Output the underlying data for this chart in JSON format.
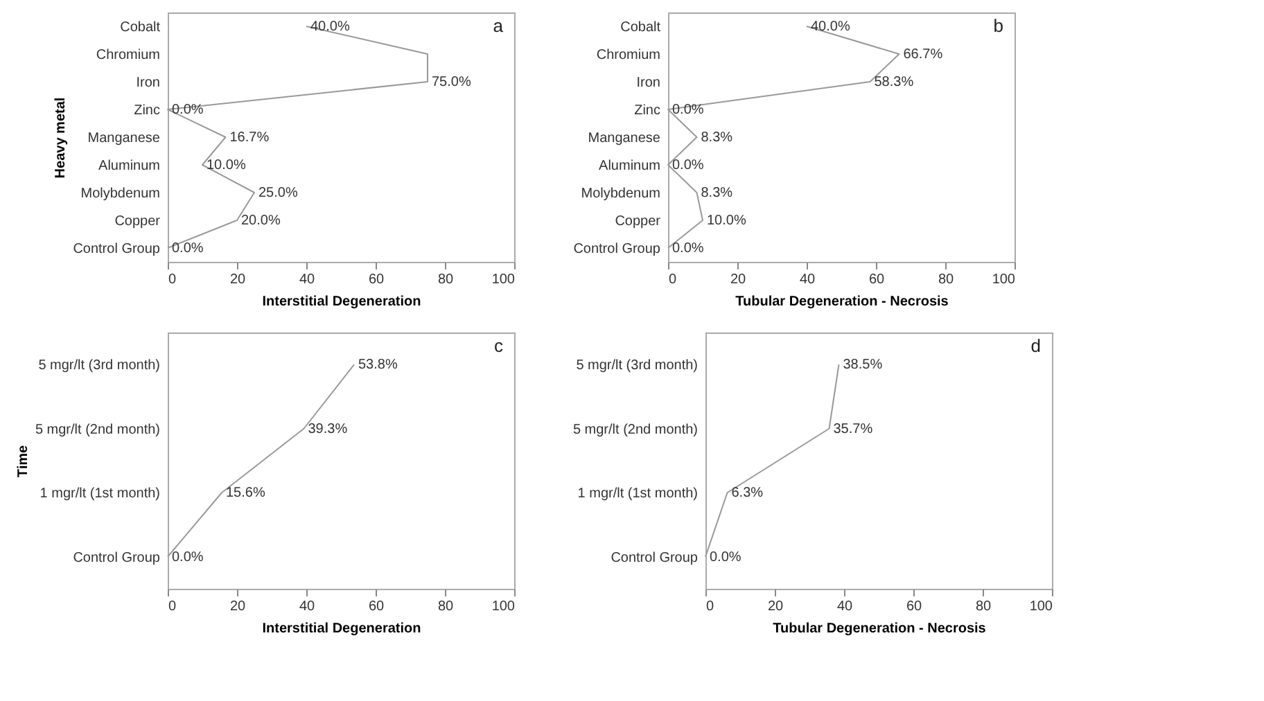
{
  "chart_data": [
    {
      "type": "line",
      "orientation": "horizontal",
      "ylabel": "Heavy metal",
      "xlabel": "Interstitial Degeneration",
      "annotations": [
        "a"
      ],
      "categories": [
        "Cobalt",
        "Chromium",
        "Iron",
        "Zinc",
        "Manganese",
        "Aluminum",
        "Molybdenum",
        "Copper",
        "Control Group"
      ],
      "series": [
        {
          "color": "#999999",
          "values": [
            40.0,
            75.0,
            75.0,
            0.0,
            16.7,
            10.0,
            25.0,
            20.0,
            0.0
          ],
          "value_labels": [
            "40.0%",
            null,
            "75.0%",
            "0.0%",
            "16.7%",
            "10.0%",
            "25.0%",
            "20.0%",
            "0.0%"
          ]
        }
      ],
      "xlim": [
        0,
        100
      ],
      "xticks": [
        0,
        20,
        40,
        60,
        80,
        100
      ],
      "grid": false,
      "marker": "none",
      "line_style": "solid"
    },
    {
      "type": "line",
      "orientation": "horizontal",
      "xlabel": "Tubular Degeneration   - Necrosis",
      "annotations": [
        "b"
      ],
      "categories": [
        "Cobalt",
        "Chromium",
        "Iron",
        "Zinc",
        "Manganese",
        "Aluminum",
        "Molybdenum",
        "Copper",
        "Control Group"
      ],
      "series": [
        {
          "color": "#999999",
          "values": [
            40.0,
            66.7,
            58.3,
            0.0,
            8.3,
            0.0,
            8.3,
            10.0,
            0.0
          ],
          "value_labels": [
            "40.0%",
            "66.7%",
            "58.3%",
            "0.0%",
            "8.3%",
            "0.0%",
            "8.3%",
            "10.0%",
            "0.0%"
          ]
        }
      ],
      "xlim": [
        0,
        100
      ],
      "xticks": [
        0,
        20,
        40,
        60,
        80,
        100
      ],
      "grid": false,
      "marker": "none",
      "line_style": "solid"
    },
    {
      "type": "line",
      "orientation": "horizontal",
      "ylabel": "Time",
      "xlabel": "Interstitial Degeneration",
      "annotations": [
        "c"
      ],
      "categories": [
        "5 mgr/lt (3rd month)",
        "5 mgr/lt (2nd month)",
        "1 mgr/lt (1st month)",
        "Control Group"
      ],
      "series": [
        {
          "color": "#999999",
          "values": [
            53.8,
            39.3,
            15.6,
            0.0
          ],
          "value_labels": [
            "53.8%",
            "39.3%",
            "15.6%",
            "0.0%"
          ]
        }
      ],
      "xlim": [
        0,
        100
      ],
      "xticks": [
        0,
        20,
        40,
        60,
        80,
        100
      ],
      "grid": false,
      "marker": "none",
      "line_style": "solid"
    },
    {
      "type": "line",
      "orientation": "horizontal",
      "xlabel": "Tubular Degeneration   - Necrosis",
      "annotations": [
        "d"
      ],
      "categories": [
        "5 mgr/lt (3rd month)",
        "5 mgr/lt (2nd month)",
        "1 mgr/lt (1st month)",
        "Control Group"
      ],
      "series": [
        {
          "color": "#999999",
          "values": [
            38.5,
            35.7,
            6.3,
            0.0
          ],
          "value_labels": [
            "38.5%",
            "35.7%",
            "6.3%",
            "0.0%"
          ]
        }
      ],
      "xlim": [
        0,
        100
      ],
      "xticks": [
        0,
        20,
        40,
        60,
        80,
        100
      ],
      "grid": false,
      "marker": "none",
      "line_style": "solid"
    }
  ]
}
